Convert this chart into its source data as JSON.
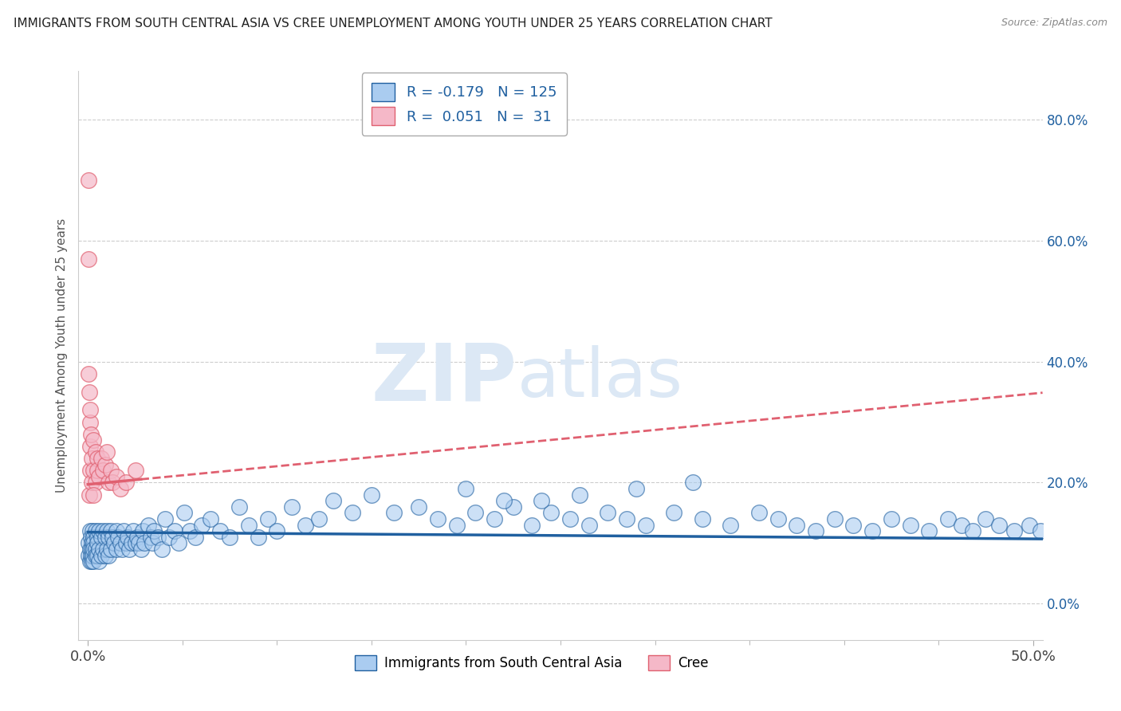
{
  "title": "IMMIGRANTS FROM SOUTH CENTRAL ASIA VS CREE UNEMPLOYMENT AMONG YOUTH UNDER 25 YEARS CORRELATION CHART",
  "source": "Source: ZipAtlas.com",
  "ylabel": "Unemployment Among Youth under 25 years",
  "legend_blue_label": "Immigrants from South Central Asia",
  "legend_pink_label": "Cree",
  "legend_r_blue": "-0.179",
  "legend_n_blue": "125",
  "legend_r_pink": "0.051",
  "legend_n_pink": "31",
  "xlim": [
    -0.005,
    0.505
  ],
  "ylim": [
    -0.06,
    0.88
  ],
  "yticks_right": [
    0.0,
    0.2,
    0.4,
    0.6,
    0.8
  ],
  "xtick_left_label": "0.0%",
  "xtick_right_label": "50.0%",
  "blue_scatter_x": [
    0.0005,
    0.0005,
    0.001,
    0.001,
    0.001,
    0.0015,
    0.0015,
    0.002,
    0.002,
    0.002,
    0.0025,
    0.0025,
    0.003,
    0.003,
    0.003,
    0.003,
    0.004,
    0.004,
    0.004,
    0.005,
    0.005,
    0.005,
    0.006,
    0.006,
    0.006,
    0.007,
    0.007,
    0.008,
    0.008,
    0.009,
    0.009,
    0.01,
    0.01,
    0.011,
    0.011,
    0.012,
    0.012,
    0.013,
    0.014,
    0.015,
    0.015,
    0.016,
    0.017,
    0.018,
    0.019,
    0.02,
    0.021,
    0.022,
    0.023,
    0.024,
    0.025,
    0.026,
    0.027,
    0.028,
    0.029,
    0.03,
    0.032,
    0.033,
    0.034,
    0.035,
    0.037,
    0.039,
    0.041,
    0.043,
    0.046,
    0.048,
    0.051,
    0.054,
    0.057,
    0.06,
    0.065,
    0.07,
    0.075,
    0.08,
    0.085,
    0.09,
    0.095,
    0.1,
    0.108,
    0.115,
    0.122,
    0.13,
    0.14,
    0.15,
    0.162,
    0.175,
    0.185,
    0.195,
    0.205,
    0.215,
    0.225,
    0.235,
    0.245,
    0.255,
    0.265,
    0.275,
    0.285,
    0.295,
    0.31,
    0.325,
    0.34,
    0.355,
    0.365,
    0.375,
    0.385,
    0.395,
    0.405,
    0.415,
    0.425,
    0.435,
    0.445,
    0.455,
    0.462,
    0.468,
    0.475,
    0.482,
    0.49,
    0.498,
    0.504,
    0.32,
    0.29,
    0.26,
    0.24,
    0.22,
    0.2
  ],
  "blue_scatter_y": [
    0.1,
    0.08,
    0.12,
    0.09,
    0.07,
    0.11,
    0.08,
    0.1,
    0.09,
    0.07,
    0.12,
    0.08,
    0.11,
    0.1,
    0.09,
    0.07,
    0.12,
    0.09,
    0.08,
    0.11,
    0.1,
    0.08,
    0.12,
    0.09,
    0.07,
    0.11,
    0.08,
    0.12,
    0.09,
    0.11,
    0.08,
    0.12,
    0.09,
    0.11,
    0.08,
    0.12,
    0.09,
    0.11,
    0.1,
    0.12,
    0.09,
    0.11,
    0.1,
    0.09,
    0.12,
    0.1,
    0.11,
    0.09,
    0.1,
    0.12,
    0.1,
    0.11,
    0.1,
    0.09,
    0.12,
    0.1,
    0.13,
    0.11,
    0.1,
    0.12,
    0.11,
    0.09,
    0.14,
    0.11,
    0.12,
    0.1,
    0.15,
    0.12,
    0.11,
    0.13,
    0.14,
    0.12,
    0.11,
    0.16,
    0.13,
    0.11,
    0.14,
    0.12,
    0.16,
    0.13,
    0.14,
    0.17,
    0.15,
    0.18,
    0.15,
    0.16,
    0.14,
    0.13,
    0.15,
    0.14,
    0.16,
    0.13,
    0.15,
    0.14,
    0.13,
    0.15,
    0.14,
    0.13,
    0.15,
    0.14,
    0.13,
    0.15,
    0.14,
    0.13,
    0.12,
    0.14,
    0.13,
    0.12,
    0.14,
    0.13,
    0.12,
    0.14,
    0.13,
    0.12,
    0.14,
    0.13,
    0.12,
    0.13,
    0.12,
    0.2,
    0.19,
    0.18,
    0.17,
    0.17,
    0.19
  ],
  "pink_scatter_x": [
    0.0003,
    0.0005,
    0.0008,
    0.001,
    0.001,
    0.001,
    0.0015,
    0.002,
    0.002,
    0.003,
    0.003,
    0.004,
    0.004,
    0.005,
    0.005,
    0.006,
    0.007,
    0.008,
    0.009,
    0.01,
    0.011,
    0.012,
    0.013,
    0.015,
    0.017,
    0.02,
    0.025,
    0.003,
    0.0007,
    0.0005,
    0.001
  ],
  "pink_scatter_y": [
    0.7,
    0.57,
    0.18,
    0.3,
    0.26,
    0.22,
    0.28,
    0.24,
    0.2,
    0.27,
    0.22,
    0.25,
    0.2,
    0.24,
    0.22,
    0.21,
    0.24,
    0.22,
    0.23,
    0.25,
    0.2,
    0.22,
    0.2,
    0.21,
    0.19,
    0.2,
    0.22,
    0.18,
    0.35,
    0.38,
    0.32
  ],
  "blue_line_x": [
    0.0,
    0.505
  ],
  "blue_line_y_intercept": 0.118,
  "blue_line_slope": -0.022,
  "pink_solid_line_x": [
    0.0,
    0.028
  ],
  "pink_dashed_line_x": [
    0.028,
    0.505
  ],
  "pink_line_y_intercept": 0.197,
  "pink_line_slope": 0.3,
  "blue_color": "#aaccf0",
  "pink_color": "#f5b8c8",
  "blue_line_color": "#2060a0",
  "pink_line_color": "#e06070",
  "background_color": "#ffffff",
  "grid_color": "#cccccc",
  "watermark_zip": "ZIP",
  "watermark_atlas": "atlas",
  "watermark_color": "#dce8f5"
}
